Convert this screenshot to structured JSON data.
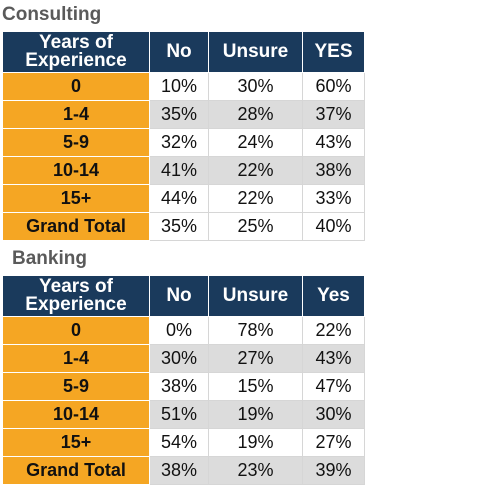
{
  "consulting": {
    "title": "Consulting",
    "headers": [
      "Years of Experience",
      "No",
      "Unsure",
      "YES"
    ],
    "rows": [
      {
        "label": "0",
        "values": [
          "10%",
          "30%",
          "60%"
        ]
      },
      {
        "label": "1-4",
        "values": [
          "35%",
          "28%",
          "37%"
        ]
      },
      {
        "label": "5-9",
        "values": [
          "32%",
          "24%",
          "43%"
        ]
      },
      {
        "label": "10-14",
        "values": [
          "41%",
          "22%",
          "38%"
        ]
      },
      {
        "label": "15+",
        "values": [
          "44%",
          "22%",
          "33%"
        ]
      },
      {
        "label": "Grand Total",
        "values": [
          "35%",
          "25%",
          "40%"
        ]
      }
    ]
  },
  "banking": {
    "title": "Banking",
    "headers": [
      "Years of Experience",
      "No",
      "Unsure",
      "Yes"
    ],
    "rows": [
      {
        "label": "0",
        "values": [
          "0%",
          "78%",
          "22%"
        ]
      },
      {
        "label": "1-4",
        "values": [
          "30%",
          "27%",
          "43%"
        ]
      },
      {
        "label": "5-9",
        "values": [
          "38%",
          "15%",
          "47%"
        ]
      },
      {
        "label": "10-14",
        "values": [
          "51%",
          "19%",
          "30%"
        ]
      },
      {
        "label": "15+",
        "values": [
          "54%",
          "19%",
          "27%"
        ]
      },
      {
        "label": "Grand Total",
        "values": [
          "38%",
          "23%",
          "39%"
        ]
      }
    ]
  },
  "colors": {
    "header_bg": "#1a3a5c",
    "row_label_bg": "#f5a623",
    "shaded_row_bg": "#dcdcdc",
    "title_text": "#5a5a5a"
  }
}
